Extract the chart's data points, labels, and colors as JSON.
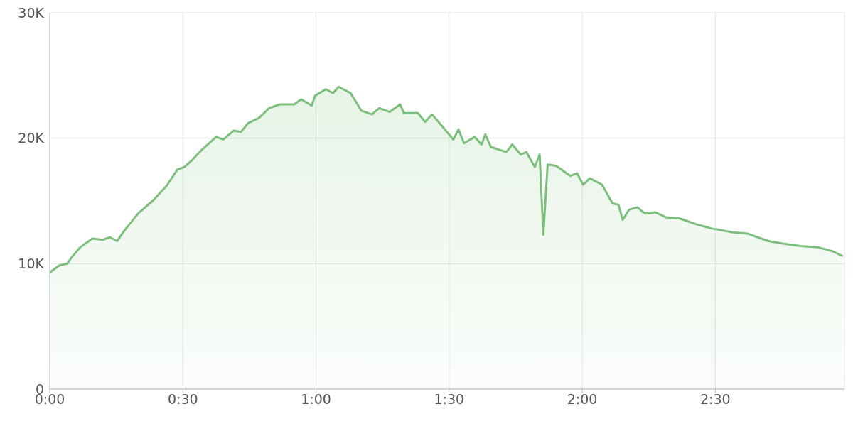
{
  "chart_data": {
    "type": "area",
    "color": "#7cbf7c",
    "grid": true,
    "x": [
      0,
      0.035,
      0.066,
      0.082,
      0.114,
      0.16,
      0.199,
      0.226,
      0.253,
      0.279,
      0.332,
      0.386,
      0.439,
      0.479,
      0.505,
      0.532,
      0.572,
      0.625,
      0.652,
      0.691,
      0.718,
      0.745,
      0.785,
      0.824,
      0.864,
      0.918,
      0.944,
      0.984,
      0.997,
      1.037,
      1.064,
      1.085,
      1.13,
      1.17,
      1.21,
      1.237,
      1.277,
      1.316,
      1.33,
      1.383,
      1.41,
      1.436,
      1.476,
      1.516,
      1.535,
      1.556,
      1.596,
      1.622,
      1.636,
      1.657,
      1.715,
      1.737,
      1.769,
      1.79,
      1.822,
      1.84,
      1.854,
      1.87,
      1.902,
      1.955,
      1.981,
      2.003,
      2.029,
      2.074,
      2.114,
      2.136,
      2.152,
      2.176,
      2.207,
      2.234,
      2.274,
      2.314,
      2.367,
      2.434,
      2.487,
      2.566,
      2.62,
      2.699,
      2.753,
      2.819,
      2.886,
      2.939,
      2.979
    ],
    "values": [
      9300,
      9850,
      10000,
      10500,
      11300,
      12000,
      11900,
      12100,
      11800,
      12600,
      14000,
      15000,
      16200,
      17500,
      17700,
      18200,
      19100,
      20100,
      19900,
      20600,
      20500,
      21200,
      21600,
      22400,
      22700,
      22700,
      23100,
      22600,
      23400,
      23900,
      23600,
      24100,
      23600,
      22200,
      21900,
      22400,
      22100,
      22700,
      22000,
      22000,
      21300,
      21900,
      20900,
      19900,
      20700,
      19600,
      20100,
      19500,
      20300,
      19300,
      18900,
      19500,
      18700,
      18900,
      17700,
      18700,
      12300,
      17900,
      17800,
      17000,
      17200,
      16300,
      16800,
      16300,
      14800,
      14700,
      13500,
      14300,
      14500,
      14000,
      14100,
      13700,
      13600,
      13100,
      12800,
      12500,
      12400,
      11800,
      11600,
      11400,
      11300,
      11000,
      10600
    ],
    "xlim": [
      0,
      2.985
    ],
    "xticks": [
      {
        "value": 0,
        "label": "0:00"
      },
      {
        "value": 0.5,
        "label": "0:30"
      },
      {
        "value": 1,
        "label": "1:00"
      },
      {
        "value": 1.5,
        "label": "1:30"
      },
      {
        "value": 2,
        "label": "2:00"
      },
      {
        "value": 2.5,
        "label": "2:30"
      }
    ],
    "ylim": [
      0,
      30000
    ],
    "yticks": [
      0,
      {
        "value": 10000,
        "label": "10K"
      },
      {
        "value": 20000,
        "label": "20K"
      },
      {
        "value": 30000,
        "label": "30K"
      }
    ]
  }
}
